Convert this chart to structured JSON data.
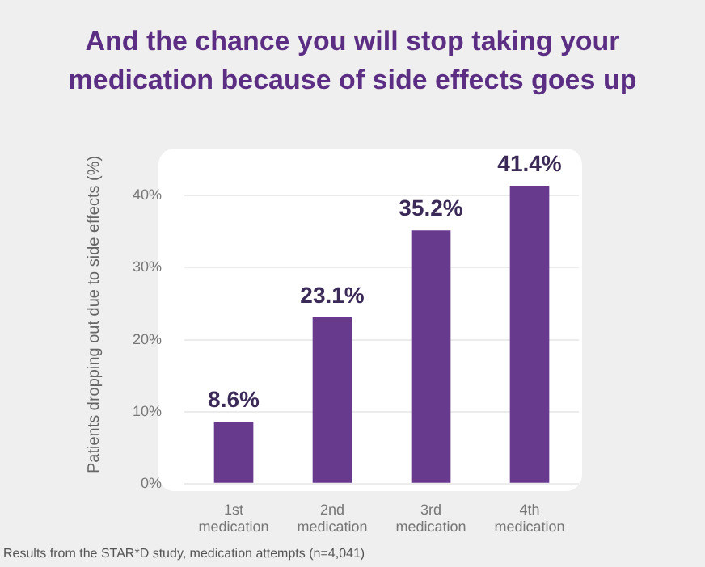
{
  "chart_data": {
    "type": "bar",
    "title": "And the chance you will stop taking your medication because of side effects goes up",
    "ylabel": "Patients dropping out due to side effects (%)",
    "categories": [
      "1st medication",
      "2nd medication",
      "3rd medication",
      "4th medication"
    ],
    "values": [
      8.6,
      23.1,
      35.2,
      41.4
    ],
    "color": "#673a8e",
    "value_labels": [
      "8.6%",
      "23.1%",
      "35.2%",
      "41.4%"
    ],
    "ylim": [
      0,
      47
    ],
    "yticks": [
      {
        "value": 0,
        "label": "0%"
      },
      {
        "value": 10,
        "label": "10%"
      },
      {
        "value": 20,
        "label": "20%"
      },
      {
        "value": 30,
        "label": "30%"
      },
      {
        "value": 40,
        "label": "40%"
      }
    ],
    "grid": "y",
    "legend": false,
    "annotations": [
      "Results from the STAR*D study, medication attempts (n=4,041)"
    ]
  }
}
